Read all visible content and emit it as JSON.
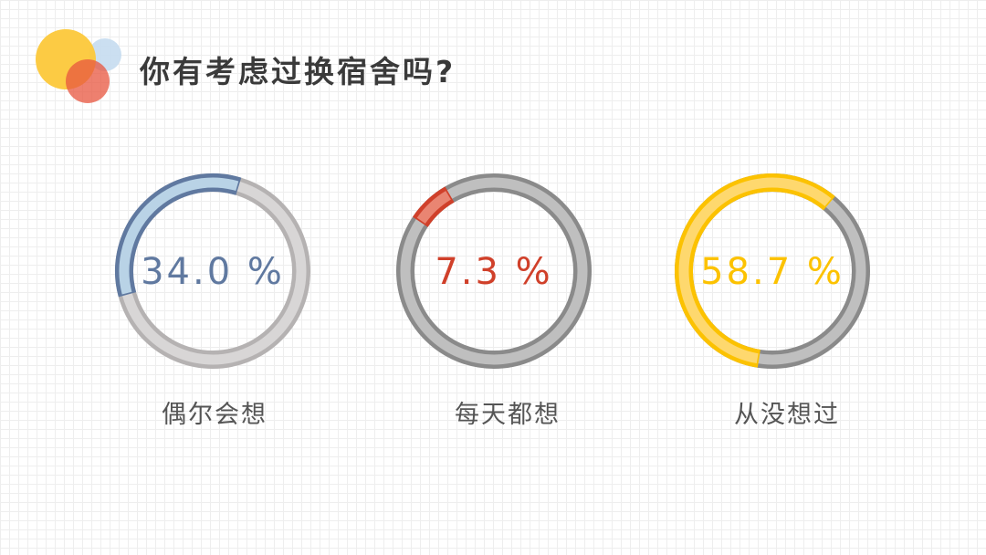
{
  "title": "你有考虑过换宿舍吗?",
  "chart_data": [
    {
      "type": "pie",
      "style": "donut",
      "category": "偶尔会想",
      "value": 34.0,
      "label": "34.0 %",
      "color": "#6079a0",
      "light_color": "#b9d3e6",
      "track_color": "#b5b2b2",
      "track_light": "#d8d6d6"
    },
    {
      "type": "pie",
      "style": "donut",
      "category": "每天都想",
      "value": 7.3,
      "label": "7.3 %",
      "color": "#d0402a",
      "light_color": "#e98572",
      "track_color": "#8a8a8a",
      "track_light": "#bfbfbf"
    },
    {
      "type": "pie",
      "style": "donut",
      "category": "从没想过",
      "value": 58.7,
      "label": "58.7 %",
      "color": "#fcc200",
      "light_color": "#fed86e",
      "track_color": "#8a8a8a",
      "track_light": "#bfbfbf"
    }
  ]
}
